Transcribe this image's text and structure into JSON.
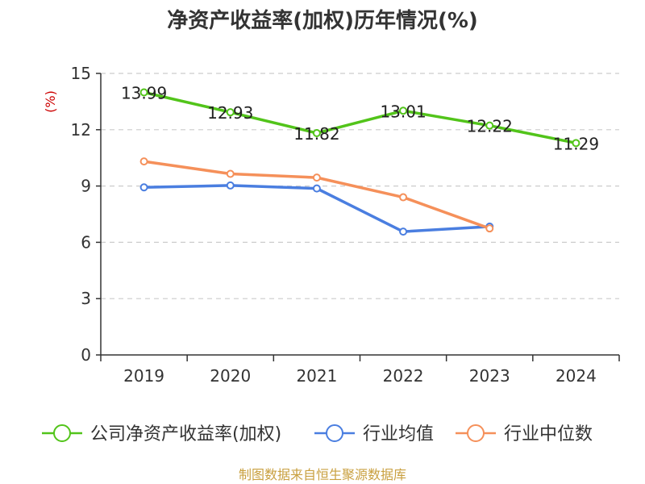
{
  "colors": {
    "series": [
      "#52c41a",
      "#4a7ee0",
      "#f5905a"
    ],
    "grid": "#cccccc",
    "axis": "#333333",
    "unit": "#cc0000",
    "source": "#c9a040"
  },
  "chart_data": {
    "type": "line",
    "title": "净资产收益率(加权)历年情况(%)",
    "ylabel": "(%)",
    "xlabel": "",
    "categories": [
      "2019",
      "2020",
      "2021",
      "2022",
      "2023",
      "2024"
    ],
    "ylim": [
      0,
      15
    ],
    "yticks": [
      0,
      3,
      6,
      9,
      12,
      15
    ],
    "grid": true,
    "legend_position": "bottom",
    "series": [
      {
        "name": "公司净资产收益率(加权)",
        "values": [
          13.99,
          12.93,
          11.82,
          13.01,
          12.22,
          11.29
        ],
        "labels": [
          "13.99",
          "12.93",
          "11.82",
          "13.01",
          "12.22",
          "11.29"
        ],
        "show_labels": true
      },
      {
        "name": "行业均值",
        "values": [
          8.93,
          9.03,
          8.87,
          6.57,
          6.84,
          null
        ],
        "show_labels": false
      },
      {
        "name": "行业中位数",
        "values": [
          10.31,
          9.65,
          9.45,
          8.4,
          6.74,
          null
        ],
        "show_labels": false
      }
    ]
  },
  "source": "制图数据来自恒生聚源数据库"
}
